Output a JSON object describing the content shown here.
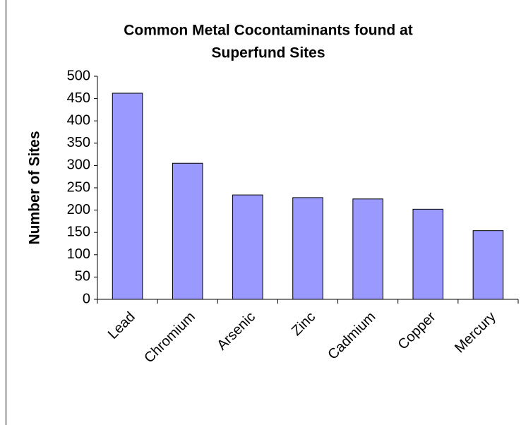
{
  "chart_data": {
    "type": "bar",
    "title": [
      "Common Metal Cocontaminants found at",
      "Superfund Sites"
    ],
    "y_label": "Number of Sites",
    "categories": [
      "Lead",
      "Chromium",
      "Arsenic",
      "Zinc",
      "Cadmium",
      "Copper",
      "Mercury"
    ],
    "values": [
      462,
      305,
      234,
      228,
      225,
      202,
      154
    ],
    "color": "#9999ff",
    "ylim": [
      0,
      500
    ],
    "yticks": [
      0,
      50,
      100,
      150,
      200,
      250,
      300,
      350,
      400,
      450,
      500
    ],
    "grid": false
  }
}
